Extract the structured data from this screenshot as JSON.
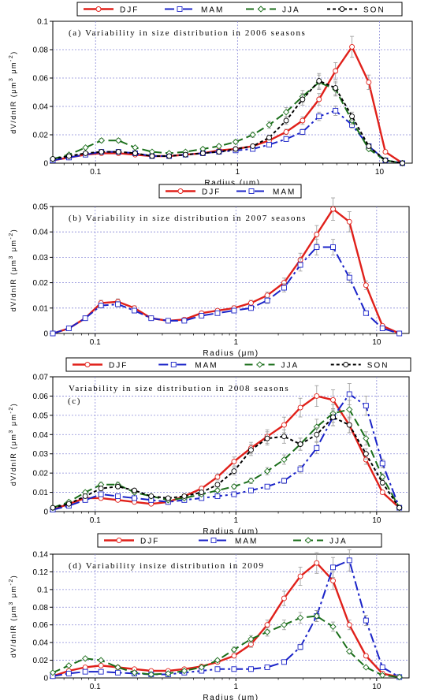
{
  "chart_data": [
    {
      "type": "line",
      "title": "(a)  Variability in size distribution in 2006 seasons",
      "xlabel": "Radius (μm)",
      "ylabel": "dV/dnlR (μm",
      "ylabel_sup1": "3",
      "ylabel_mid": " μm",
      "ylabel_sup2": "-2",
      "ylabel_end": ")",
      "xscale": "log",
      "xlim": [
        0.05,
        17
      ],
      "ylim": [
        0,
        0.1
      ],
      "yticks": [
        0,
        0.02,
        0.04,
        0.06,
        0.08,
        0.1
      ],
      "ytick_labels": [
        "0",
        "0.02",
        "0.04",
        "0.06",
        "0.08",
        "0.1"
      ],
      "xticks": [
        0.1,
        1,
        10
      ],
      "xtick_labels": [
        "0.1",
        "1",
        "10"
      ],
      "legend_position": "top",
      "x": [
        0.05,
        0.065,
        0.085,
        0.11,
        0.145,
        0.19,
        0.25,
        0.33,
        0.43,
        0.57,
        0.74,
        0.97,
        1.28,
        1.67,
        2.2,
        2.87,
        3.75,
        4.9,
        6.4,
        8.4,
        11,
        14.5
      ],
      "series": [
        {
          "name": "DJF",
          "color": "#e0201a",
          "dash": "",
          "marker": "circle",
          "width": 2.4,
          "values": [
            0.002,
            0.004,
            0.006,
            0.007,
            0.007,
            0.006,
            0.005,
            0.005,
            0.006,
            0.007,
            0.009,
            0.01,
            0.012,
            0.016,
            0.022,
            0.03,
            0.045,
            0.065,
            0.082,
            0.057,
            0.008,
            0.0
          ]
        },
        {
          "name": "MAM",
          "color": "#1a23c8",
          "dash": "12,4,3,4",
          "marker": "square",
          "width": 2.0,
          "values": [
            0.002,
            0.004,
            0.006,
            0.008,
            0.008,
            0.007,
            0.005,
            0.005,
            0.006,
            0.007,
            0.008,
            0.009,
            0.01,
            0.013,
            0.017,
            0.022,
            0.033,
            0.037,
            0.027,
            0.012,
            0.002,
            0.0
          ]
        },
        {
          "name": "JJA",
          "color": "#1a6e1a",
          "dash": "10,5",
          "marker": "diamond",
          "width": 2.0,
          "values": [
            0.003,
            0.006,
            0.011,
            0.016,
            0.016,
            0.011,
            0.008,
            0.007,
            0.008,
            0.01,
            0.012,
            0.015,
            0.02,
            0.027,
            0.036,
            0.047,
            0.057,
            0.052,
            0.03,
            0.01,
            0.002,
            0.0
          ]
        },
        {
          "name": "SON",
          "color": "#000000",
          "dash": "4,3",
          "marker": "circle",
          "width": 2.0,
          "values": [
            0.003,
            0.005,
            0.007,
            0.008,
            0.008,
            0.007,
            0.005,
            0.005,
            0.006,
            0.007,
            0.008,
            0.01,
            0.012,
            0.018,
            0.03,
            0.045,
            0.058,
            0.053,
            0.033,
            0.012,
            0.002,
            0.0
          ]
        }
      ]
    },
    {
      "type": "line",
      "title": "(b)  Variability in size distribution in 2007 seasons",
      "xlabel": "Radius (μm)",
      "ylabel": "dV/dnlR (μm",
      "ylabel_sup1": "3",
      "ylabel_mid": " μm",
      "ylabel_sup2": "-2",
      "ylabel_end": ")",
      "xscale": "log",
      "xlim": [
        0.05,
        17
      ],
      "ylim": [
        0,
        0.05
      ],
      "yticks": [
        0,
        0.01,
        0.02,
        0.03,
        0.04,
        0.05
      ],
      "ytick_labels": [
        "0",
        "0.01",
        "0.02",
        "0.03",
        "0.04",
        "0.05"
      ],
      "xticks": [
        0.1,
        1,
        10
      ],
      "xtick_labels": [
        "0.1",
        "1",
        "10"
      ],
      "legend_position": "top",
      "x": [
        0.05,
        0.065,
        0.085,
        0.11,
        0.145,
        0.19,
        0.25,
        0.33,
        0.43,
        0.57,
        0.74,
        0.97,
        1.28,
        1.67,
        2.2,
        2.87,
        3.75,
        4.9,
        6.4,
        8.4,
        11,
        14.5
      ],
      "series": [
        {
          "name": "DJF",
          "color": "#e0201a",
          "dash": "",
          "marker": "circle",
          "width": 2.4,
          "values": [
            0.0,
            0.002,
            0.006,
            0.012,
            0.0125,
            0.01,
            0.006,
            0.005,
            0.0055,
            0.008,
            0.009,
            0.01,
            0.012,
            0.015,
            0.02,
            0.029,
            0.039,
            0.049,
            0.044,
            0.019,
            0.003,
            0.0
          ]
        },
        {
          "name": "MAM",
          "color": "#1a23c8",
          "dash": "12,4,3,4",
          "marker": "square",
          "width": 2.0,
          "values": [
            0.0,
            0.002,
            0.006,
            0.011,
            0.0115,
            0.009,
            0.006,
            0.005,
            0.005,
            0.007,
            0.008,
            0.009,
            0.01,
            0.013,
            0.018,
            0.027,
            0.034,
            0.034,
            0.022,
            0.008,
            0.002,
            0.0
          ]
        }
      ]
    },
    {
      "type": "line",
      "title": "Variability in size distribution in 2008 seasons",
      "panel_label": "(c)",
      "xlabel": "Radius (μm)",
      "ylabel": "dV/dnlR (μm",
      "ylabel_sup1": "3",
      "ylabel_mid": " μm",
      "ylabel_sup2": "-2",
      "ylabel_end": ")",
      "xscale": "log",
      "xlim": [
        0.05,
        17
      ],
      "ylim": [
        0,
        0.07
      ],
      "yticks": [
        0,
        0.01,
        0.02,
        0.03,
        0.04,
        0.05,
        0.06,
        0.07
      ],
      "ytick_labels": [
        "0",
        "0.01",
        "0.02",
        "0.03",
        "0.04",
        "0.05",
        "0.06",
        "0.07"
      ],
      "xticks": [
        0.1,
        1,
        10
      ],
      "xtick_labels": [
        "0.1",
        "1",
        "10"
      ],
      "legend_position": "top",
      "x": [
        0.05,
        0.065,
        0.085,
        0.11,
        0.145,
        0.19,
        0.25,
        0.33,
        0.43,
        0.57,
        0.74,
        0.97,
        1.28,
        1.67,
        2.2,
        2.87,
        3.75,
        4.9,
        6.4,
        8.4,
        11,
        14.5
      ],
      "series": [
        {
          "name": "DJF",
          "color": "#e0201a",
          "dash": "",
          "marker": "circle",
          "width": 2.4,
          "values": [
            0.001,
            0.004,
            0.007,
            0.007,
            0.006,
            0.005,
            0.004,
            0.005,
            0.008,
            0.012,
            0.018,
            0.026,
            0.033,
            0.039,
            0.045,
            0.054,
            0.06,
            0.058,
            0.045,
            0.027,
            0.01,
            0.002
          ]
        },
        {
          "name": "MAM",
          "color": "#1a23c8",
          "dash": "12,4,3,4",
          "marker": "square",
          "width": 2.0,
          "values": [
            0.001,
            0.003,
            0.006,
            0.009,
            0.008,
            0.007,
            0.006,
            0.005,
            0.006,
            0.007,
            0.008,
            0.009,
            0.011,
            0.013,
            0.016,
            0.022,
            0.033,
            0.049,
            0.061,
            0.055,
            0.025,
            0.002
          ]
        },
        {
          "name": "JJA",
          "color": "#1a6e1a",
          "dash": "10,5",
          "marker": "diamond",
          "width": 2.0,
          "values": [
            0.002,
            0.005,
            0.01,
            0.014,
            0.014,
            0.01,
            0.008,
            0.006,
            0.007,
            0.009,
            0.011,
            0.013,
            0.016,
            0.021,
            0.027,
            0.035,
            0.044,
            0.051,
            0.053,
            0.038,
            0.018,
            0.002
          ]
        },
        {
          "name": "SON",
          "color": "#000000",
          "dash": "4,3",
          "marker": "circle",
          "width": 2.0,
          "values": [
            0.002,
            0.004,
            0.008,
            0.012,
            0.013,
            0.011,
            0.008,
            0.007,
            0.008,
            0.01,
            0.014,
            0.021,
            0.032,
            0.038,
            0.039,
            0.035,
            0.04,
            0.049,
            0.045,
            0.03,
            0.015,
            0.002
          ]
        }
      ]
    },
    {
      "type": "line",
      "title": "(d)  Variability insize distribution in 2009",
      "xlabel": "Radius (μm)",
      "ylabel": "dV/dnlR (μm",
      "ylabel_sup1": "3",
      "ylabel_mid": " μm",
      "ylabel_sup2": "-2",
      "ylabel_end": ")",
      "xscale": "log",
      "xlim": [
        0.05,
        17
      ],
      "ylim": [
        0,
        0.14
      ],
      "yticks": [
        0,
        0.02,
        0.04,
        0.06,
        0.08,
        0.1,
        0.12,
        0.14
      ],
      "ytick_labels": [
        "0",
        "0.02",
        "0.04",
        "0.06",
        "0.08",
        "0.1",
        "0.12",
        "0.14"
      ],
      "xticks": [
        0.1,
        1,
        10
      ],
      "xtick_labels": [
        "0.1",
        "1",
        "10"
      ],
      "legend_position": "top",
      "x": [
        0.05,
        0.065,
        0.085,
        0.11,
        0.145,
        0.19,
        0.25,
        0.33,
        0.43,
        0.57,
        0.74,
        0.97,
        1.28,
        1.67,
        2.2,
        2.87,
        3.75,
        4.9,
        6.4,
        8.4,
        11,
        14.5
      ],
      "series": [
        {
          "name": "DJF",
          "color": "#e0201a",
          "dash": "",
          "marker": "circle",
          "width": 2.4,
          "values": [
            0.002,
            0.008,
            0.012,
            0.014,
            0.012,
            0.01,
            0.008,
            0.008,
            0.01,
            0.013,
            0.018,
            0.025,
            0.038,
            0.06,
            0.09,
            0.115,
            0.13,
            0.11,
            0.06,
            0.025,
            0.005,
            0.001
          ]
        },
        {
          "name": "MAM",
          "color": "#1a23c8",
          "dash": "12,4,3,4",
          "marker": "square",
          "width": 2.0,
          "values": [
            0.002,
            0.005,
            0.007,
            0.007,
            0.006,
            0.005,
            0.004,
            0.004,
            0.006,
            0.008,
            0.01,
            0.01,
            0.01,
            0.012,
            0.018,
            0.035,
            0.07,
            0.125,
            0.133,
            0.065,
            0.012,
            0.001
          ]
        },
        {
          "name": "JJA",
          "color": "#1a6e1a",
          "dash": "10,5",
          "marker": "diamond",
          "width": 2.0,
          "values": [
            0.006,
            0.014,
            0.022,
            0.02,
            0.012,
            0.006,
            0.004,
            0.005,
            0.008,
            0.012,
            0.02,
            0.032,
            0.044,
            0.052,
            0.06,
            0.068,
            0.07,
            0.058,
            0.03,
            0.012,
            0.003,
            0.001
          ]
        }
      ]
    }
  ]
}
